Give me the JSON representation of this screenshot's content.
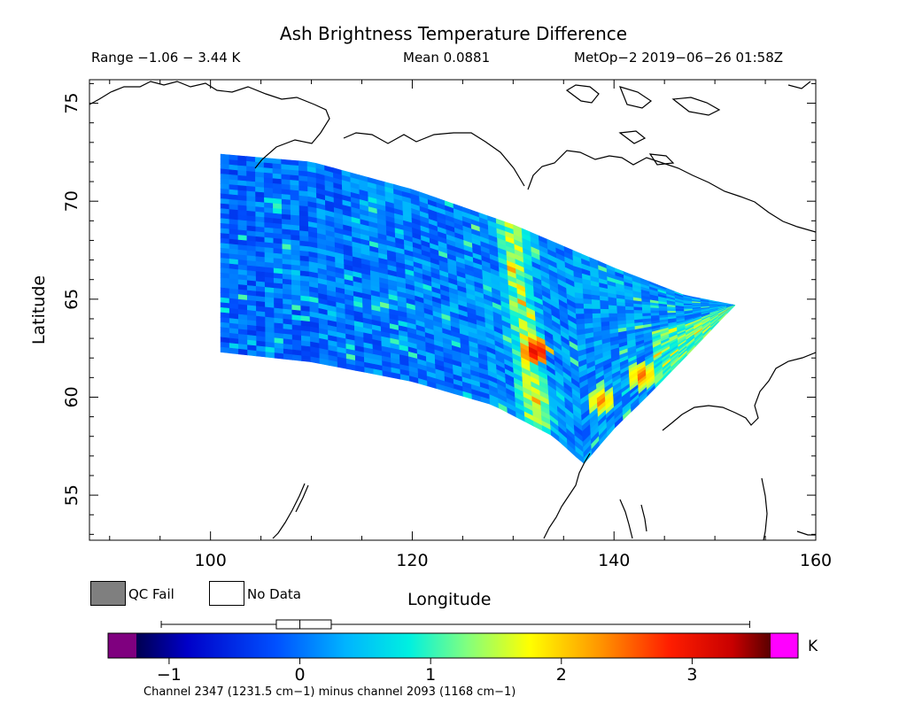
{
  "chart_data": {
    "type": "heatmap",
    "title": "Ash Brightness Temperature Difference",
    "header": {
      "range": "Range −1.06 − 3.44 K",
      "mean": "Mean 0.0881",
      "satellite": "MetOp−2 2019−06−26 01:58Z"
    },
    "xlabel": "Longitude",
    "ylabel": "Latitude",
    "xlim": [
      88,
      160
    ],
    "ylim": [
      52.7,
      76.2
    ],
    "x_ticks": [
      100,
      120,
      140,
      160
    ],
    "y_ticks": [
      55,
      60,
      65,
      70,
      75
    ],
    "swath": {
      "west_edge": [
        [
          101,
          72.4
        ],
        [
          101,
          62.3
        ]
      ],
      "north_edge": [
        [
          101,
          72.4
        ],
        [
          110,
          72.0
        ],
        [
          120,
          70.6
        ],
        [
          130,
          68.8
        ],
        [
          140,
          66.6
        ],
        [
          147,
          65.2
        ],
        [
          152,
          64.7
        ]
      ],
      "south_edge": [
        [
          101,
          62.3
        ],
        [
          110,
          61.8
        ],
        [
          120,
          60.8
        ],
        [
          128,
          59.6
        ],
        [
          134,
          58.0
        ],
        [
          137,
          56.6
        ]
      ],
      "east_edge": [
        [
          152,
          64.7
        ],
        [
          147,
          62.0
        ],
        [
          143,
          59.9
        ],
        [
          140,
          58.4
        ],
        [
          137,
          56.6
        ]
      ]
    },
    "features": [
      {
        "lon": 132.3,
        "lat": 62.3,
        "value": 3.3
      },
      {
        "lon": 142.8,
        "lat": 61.1,
        "value": 2.6
      },
      {
        "lon": 138.8,
        "lat": 59.8,
        "value": 2.5
      }
    ],
    "colorbar": {
      "ticks": [
        -1,
        0,
        1,
        2,
        3
      ],
      "min": -1.25,
      "max": 3.6,
      "unit": "K",
      "caption": "Channel 2347 (1231.5 cm−1) minus channel 2093 (1168 cm−1)",
      "boxplot": {
        "min": -1.06,
        "q1": -0.18,
        "median": 0.0,
        "q3": 0.24,
        "max": 3.44
      }
    },
    "legend": {
      "qc_fail": "QC Fail",
      "no_data": "No Data"
    }
  },
  "colors": {
    "qc_fail": "#7f7f7f",
    "below_range": "#7f007f",
    "above_range": "#ff00ff",
    "coastline": "#000000"
  }
}
